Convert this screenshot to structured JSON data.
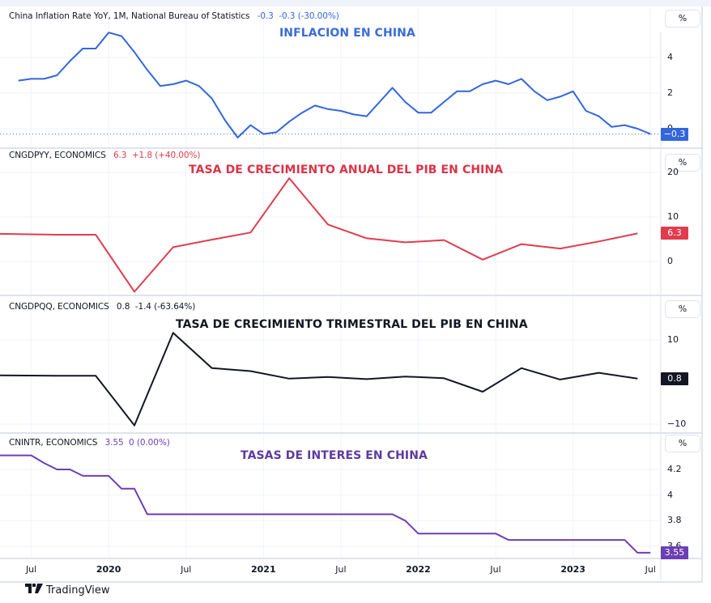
{
  "chart_data": [
    {
      "type": "line",
      "pane": "inflation",
      "title": "China Inflation Rate YoY, 1M, National Bureau of Statistics",
      "annotation": "INFLACION EN CHINA",
      "last_value": "-0.3",
      "change": "-0.3 (-30.00%)",
      "unit": "%",
      "color": "#3366dd",
      "ylim": [
        -0.6,
        5.8
      ],
      "yticks": [
        0,
        2,
        4
      ],
      "x": [
        "2019-06",
        "2019-07",
        "2019-08",
        "2019-09",
        "2019-10",
        "2019-11",
        "2019-12",
        "2020-01",
        "2020-02",
        "2020-03",
        "2020-04",
        "2020-05",
        "2020-06",
        "2020-07",
        "2020-08",
        "2020-09",
        "2020-10",
        "2020-11",
        "2020-12",
        "2021-01",
        "2021-02",
        "2021-03",
        "2021-04",
        "2021-05",
        "2021-06",
        "2021-07",
        "2021-08",
        "2021-09",
        "2021-10",
        "2021-11",
        "2021-12",
        "2022-01",
        "2022-02",
        "2022-03",
        "2022-04",
        "2022-05",
        "2022-06",
        "2022-07",
        "2022-08",
        "2022-09",
        "2022-10",
        "2022-11",
        "2022-12",
        "2023-01",
        "2023-02",
        "2023-03",
        "2023-04",
        "2023-05",
        "2023-06",
        "2023-07"
      ],
      "values": [
        2.7,
        2.8,
        2.8,
        3.0,
        3.8,
        4.5,
        4.5,
        5.4,
        5.2,
        4.3,
        3.3,
        2.4,
        2.5,
        2.7,
        2.4,
        1.7,
        0.5,
        -0.5,
        0.2,
        -0.3,
        -0.2,
        0.4,
        0.9,
        1.3,
        1.1,
        1.0,
        0.8,
        0.7,
        1.5,
        2.3,
        1.5,
        0.9,
        0.9,
        1.5,
        2.1,
        2.1,
        2.5,
        2.7,
        2.5,
        2.8,
        2.1,
        1.6,
        1.8,
        2.1,
        1.0,
        0.7,
        0.1,
        0.2,
        0.0,
        -0.3
      ]
    },
    {
      "type": "line",
      "pane": "gdp-yoy",
      "title": "CNGDPYY, ECONOMICS",
      "annotation": "TASA DE CRECIMIENTO ANUAL DEL PIB EN CHINA",
      "last_value": "6.3",
      "change": "+1.8 (+40.00%)",
      "unit": "%",
      "color": "#e03c4e",
      "ylim": [
        -8,
        21
      ],
      "yticks": [
        0,
        10,
        20
      ],
      "x": [
        "2019-Q2",
        "2019-Q3",
        "2019-Q4",
        "2020-Q1",
        "2020-Q2",
        "2020-Q3",
        "2020-Q4",
        "2021-Q1",
        "2021-Q2",
        "2021-Q3",
        "2021-Q4",
        "2022-Q1",
        "2022-Q2",
        "2022-Q3",
        "2022-Q4",
        "2023-Q1",
        "2023-Q2"
      ],
      "values": [
        6.2,
        6.0,
        6.0,
        -6.8,
        3.2,
        4.9,
        6.5,
        18.7,
        8.3,
        5.2,
        4.3,
        4.8,
        0.4,
        3.9,
        2.9,
        4.5,
        6.3
      ]
    },
    {
      "type": "line",
      "pane": "gdp-qoq",
      "title": "CNGDPQQ, ECONOMICS",
      "annotation": "TASA DE CRECIMIENTO TRIMESTRAL DEL PIB EN CHINA",
      "last_value": "0.8",
      "change": "-1.4 (-63.64%)",
      "unit": "%",
      "color": "#131722",
      "ylim": [
        -11,
        13
      ],
      "yticks": [
        -10,
        10
      ],
      "x": [
        "2019-Q2",
        "2019-Q3",
        "2019-Q4",
        "2020-Q1",
        "2020-Q2",
        "2020-Q3",
        "2020-Q4",
        "2021-Q1",
        "2021-Q2",
        "2021-Q3",
        "2021-Q4",
        "2022-Q1",
        "2022-Q2",
        "2022-Q3",
        "2022-Q4",
        "2023-Q1",
        "2023-Q2"
      ],
      "values": [
        1.6,
        1.5,
        1.5,
        -10.3,
        11.7,
        3.3,
        2.6,
        0.8,
        1.2,
        0.7,
        1.3,
        0.9,
        -2.3,
        3.3,
        0.6,
        2.2,
        0.8
      ]
    },
    {
      "type": "line",
      "pane": "interest-rate",
      "title": "CNINTR, ECONOMICS",
      "annotation": "TASAS DE INTERES EN CHINA",
      "last_value": "3.55",
      "change": "0 (0.00%)",
      "unit": "%",
      "color": "#6b3fb5",
      "ylim": [
        3.52,
        4.38
      ],
      "yticks": [
        3.6,
        3.8,
        4,
        4.2
      ],
      "ytick_labels": [
        "3.6",
        "3.8",
        "4",
        "4.2"
      ],
      "x": [
        "2019-05",
        "2019-07",
        "2019-08",
        "2019-09",
        "2019-10",
        "2019-11",
        "2019-12",
        "2020-01",
        "2020-02",
        "2020-03",
        "2020-04",
        "2020-05",
        "2021-11",
        "2021-12",
        "2022-01",
        "2022-07",
        "2022-08",
        "2023-05",
        "2023-06",
        "2023-07"
      ],
      "values": [
        4.31,
        4.31,
        4.25,
        4.2,
        4.2,
        4.15,
        4.15,
        4.15,
        4.05,
        4.05,
        3.85,
        3.85,
        3.85,
        3.8,
        3.7,
        3.7,
        3.65,
        3.65,
        3.55,
        3.55
      ]
    }
  ],
  "time_axis": {
    "ticks": [
      {
        "label": "Jul",
        "date": "2019-07",
        "year": false
      },
      {
        "label": "2020",
        "date": "2020-01",
        "year": true
      },
      {
        "label": "Jul",
        "date": "2020-07",
        "year": false
      },
      {
        "label": "2021",
        "date": "2021-01",
        "year": true
      },
      {
        "label": "Jul",
        "date": "2021-07",
        "year": false
      },
      {
        "label": "2022",
        "date": "2022-01",
        "year": true
      },
      {
        "label": "Jul",
        "date": "2022-07",
        "year": false
      },
      {
        "label": "2023",
        "date": "2023-01",
        "year": true
      },
      {
        "label": "Jul",
        "date": "2023-07",
        "year": false
      }
    ]
  },
  "scale_button_label": "%",
  "branding": {
    "logo_text": "TradingView",
    "logo_mark": "TV"
  }
}
